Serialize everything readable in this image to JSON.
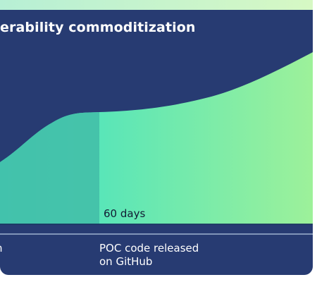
{
  "diagram": {
    "title": "erability commoditization",
    "marker": {
      "label": "60 days"
    },
    "stages": [
      {
        "line1": "n",
        "line2": ""
      },
      {
        "line1": "POC code released",
        "line2": "on GitHub"
      }
    ],
    "colors": {
      "panel_background": "#273b72",
      "top_strip": "#c9f6c0",
      "shaded_region": "#44bfa8",
      "gradient_start": "#39e0c6",
      "gradient_end": "#9df19a",
      "separator": "#d9ecff",
      "marker_text": "#111b33"
    }
  }
}
